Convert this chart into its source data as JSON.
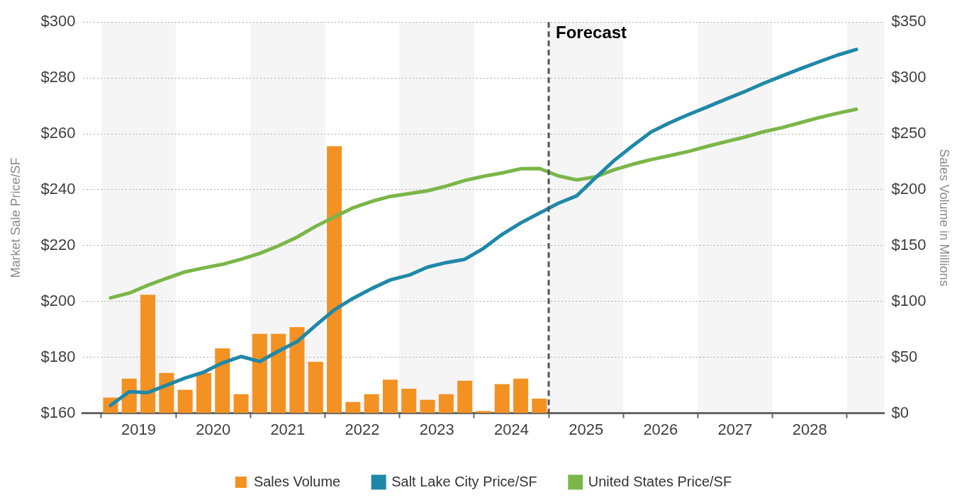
{
  "chart_data": {
    "type": "bar",
    "ylabel": "Market Sale Price/SF",
    "y2label": "Sales Volume in Millions",
    "xlim": [
      2018.75,
      2029.5
    ],
    "xticks": [
      {
        "value": 2019.5,
        "label": "2019"
      },
      {
        "value": 2020.5,
        "label": "2020"
      },
      {
        "value": 2021.5,
        "label": "2021"
      },
      {
        "value": 2022.5,
        "label": "2022"
      },
      {
        "value": 2023.5,
        "label": "2023"
      },
      {
        "value": 2024.5,
        "label": "2024"
      },
      {
        "value": 2025.5,
        "label": "2025"
      },
      {
        "value": 2026.5,
        "label": "2026"
      },
      {
        "value": 2027.5,
        "label": "2027"
      },
      {
        "value": 2028.5,
        "label": "2028"
      }
    ],
    "ylim": [
      160,
      300
    ],
    "yticks": [
      {
        "value": 160,
        "label": "$160"
      },
      {
        "value": 180,
        "label": "$180"
      },
      {
        "value": 200,
        "label": "$200"
      },
      {
        "value": 220,
        "label": "$220"
      },
      {
        "value": 240,
        "label": "$240"
      },
      {
        "value": 260,
        "label": "$260"
      },
      {
        "value": 280,
        "label": "$280"
      },
      {
        "value": 300,
        "label": "$300"
      }
    ],
    "y2lim": [
      0,
      350
    ],
    "y2ticks": [
      {
        "value": 0,
        "label": "$0"
      },
      {
        "value": 50,
        "label": "$50"
      },
      {
        "value": 100,
        "label": "$100"
      },
      {
        "value": 150,
        "label": "$150"
      },
      {
        "value": 200,
        "label": "$200"
      },
      {
        "value": 250,
        "label": "$250"
      },
      {
        "value": 300,
        "label": "$300"
      },
      {
        "value": 350,
        "label": "$350"
      }
    ],
    "grid": "y",
    "legend": "bottom",
    "bands": [
      {
        "axis": "x",
        "from": 2019,
        "to": 2020,
        "color": "#f5f5f5"
      },
      {
        "axis": "x",
        "from": 2021,
        "to": 2022,
        "color": "#f5f5f5"
      },
      {
        "axis": "x",
        "from": 2023,
        "to": 2024,
        "color": "#f5f5f5"
      },
      {
        "axis": "x",
        "from": 2025,
        "to": 2026,
        "color": "#f5f5f5"
      },
      {
        "axis": "x",
        "from": 2027,
        "to": 2028,
        "color": "#f5f5f5"
      },
      {
        "axis": "x",
        "from": 2029,
        "to": 2029.5,
        "color": "#f5f5f5"
      }
    ],
    "ref_lines": [
      {
        "axis": "x",
        "value": 2025,
        "label": "Forecast",
        "color": "#555555",
        "line_style": "dashed"
      }
    ],
    "series": [
      {
        "name": "Sales Volume",
        "axis": "y2",
        "color": "#f39123",
        "x": [
          2019.125,
          2019.375,
          2019.625,
          2019.875,
          2020.125,
          2020.375,
          2020.625,
          2020.875,
          2021.125,
          2021.375,
          2021.625,
          2021.875,
          2022.125,
          2022.375,
          2022.625,
          2022.875,
          2023.125,
          2023.375,
          2023.625,
          2023.875,
          2024.125,
          2024.375,
          2024.625,
          2024.875
        ],
        "values": [
          14,
          31,
          106,
          36,
          21,
          36,
          58,
          17,
          71,
          71,
          77,
          46,
          239,
          10,
          17,
          30,
          22,
          12,
          17,
          29,
          2,
          26,
          31,
          13
        ]
      },
      {
        "name": "Salt Lake City Price/SF",
        "type": "line",
        "color": "#1f88a8",
        "x": [
          2019.125,
          2019.375,
          2019.625,
          2019.875,
          2020.125,
          2020.375,
          2020.625,
          2020.875,
          2021.125,
          2021.375,
          2021.625,
          2021.875,
          2022.125,
          2022.375,
          2022.625,
          2022.875,
          2023.125,
          2023.375,
          2023.625,
          2023.875,
          2024.125,
          2024.375,
          2024.625,
          2024.875,
          2025.125,
          2025.375,
          2025.625,
          2025.875,
          2026.125,
          2026.375,
          2026.625,
          2026.875,
          2027.125,
          2027.375,
          2027.625,
          2027.875,
          2028.125,
          2028.375,
          2028.625,
          2028.875,
          2029.125
        ],
        "values": [
          162.8,
          167.7,
          167.4,
          170,
          172.6,
          174.7,
          178,
          180.3,
          178.5,
          182.2,
          185.6,
          191.4,
          197,
          201.1,
          204.6,
          207.7,
          209.4,
          212.3,
          213.9,
          215.1,
          219,
          224,
          228.1,
          231.6,
          235.1,
          237.8,
          244.2,
          250.4,
          255.7,
          260.7,
          264,
          266.9,
          269.6,
          272.4,
          275.1,
          278,
          280.7,
          283.3,
          285.8,
          288.2,
          290.2
        ]
      },
      {
        "name": "United States Price/SF",
        "type": "line",
        "color": "#7ab648",
        "x": [
          2019.125,
          2019.375,
          2019.625,
          2019.875,
          2020.125,
          2020.375,
          2020.625,
          2020.875,
          2021.125,
          2021.375,
          2021.625,
          2021.875,
          2022.125,
          2022.375,
          2022.625,
          2022.875,
          2023.125,
          2023.375,
          2023.625,
          2023.875,
          2024.125,
          2024.375,
          2024.625,
          2024.875,
          2025.125,
          2025.375,
          2025.625,
          2025.875,
          2026.125,
          2026.375,
          2026.625,
          2026.875,
          2027.125,
          2027.375,
          2027.625,
          2027.875,
          2028.125,
          2028.375,
          2028.625,
          2028.875,
          2029.125
        ],
        "values": [
          201.3,
          203,
          205.8,
          208.3,
          210.6,
          212,
          213.3,
          215.1,
          217.2,
          219.9,
          223,
          226.9,
          230.2,
          233.5,
          235.8,
          237.6,
          238.6,
          239.6,
          241.3,
          243.3,
          244.8,
          246,
          247.5,
          247.6,
          245,
          243.5,
          244.6,
          247.1,
          249.1,
          250.8,
          252.2,
          253.7,
          255.5,
          257.2,
          258.8,
          260.7,
          262.2,
          264,
          265.8,
          267.4,
          268.8
        ]
      }
    ]
  }
}
